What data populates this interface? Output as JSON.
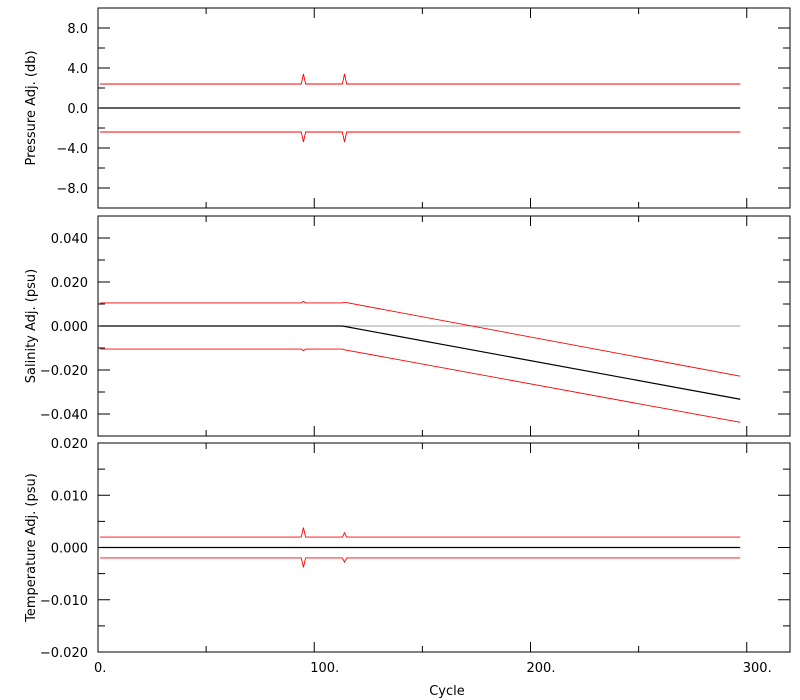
{
  "chart_data": [
    {
      "type": "line",
      "ylabel": "Pressure Adj. (db)",
      "xlim": [
        0,
        320
      ],
      "ylim": [
        -10,
        10
      ],
      "ytick_values": [
        -8,
        -4,
        0,
        4,
        8
      ],
      "ytick_labels": [
        "−8.0",
        "−4.0",
        "0.0",
        "4.0",
        "8.0"
      ],
      "grid": false,
      "colors": {
        "adjustment": "#000000",
        "error": "#ff0000"
      },
      "series": [
        {
          "points": [
            [
              1,
              0
            ],
            [
              297,
              0
            ]
          ]
        },
        {
          "points": [
            [
              1,
              2.4
            ],
            [
              94,
              2.4
            ],
            [
              95,
              3.4
            ],
            [
              96,
              2.4
            ],
            [
              113,
              2.4
            ],
            [
              114,
              3.4
            ],
            [
              115,
              2.4
            ],
            [
              297,
              2.4
            ]
          ]
        },
        {
          "points": [
            [
              1,
              -2.4
            ],
            [
              94,
              -2.4
            ],
            [
              95,
              -3.4
            ],
            [
              96,
              -2.4
            ],
            [
              113,
              -2.4
            ],
            [
              114,
              -3.4
            ],
            [
              115,
              -2.4
            ],
            [
              297,
              -2.4
            ]
          ]
        }
      ]
    },
    {
      "type": "line",
      "ylabel": "Salinity Adj. (psu)",
      "xlim": [
        0,
        320
      ],
      "ylim": [
        -0.05,
        0.05
      ],
      "ytick_values": [
        -0.04,
        -0.02,
        0,
        0.02,
        0.04
      ],
      "ytick_labels": [
        "−0.040",
        "−0.020",
        "0.000",
        "0.020",
        "0.040"
      ],
      "grid": false,
      "colors": {
        "adjustment": "#000000",
        "error": "#ff0000",
        "zero_line": "#a0a0a0"
      },
      "series": [
        {
          "points": [
            [
              1,
              0
            ],
            [
              297,
              0
            ]
          ]
        },
        {
          "points": [
            [
              1,
              0
            ],
            [
              113,
              0
            ],
            [
              297,
              -0.0333
            ]
          ]
        },
        {
          "points": [
            [
              1,
              0.0105
            ],
            [
              94,
              0.0105
            ],
            [
              95,
              0.0112
            ],
            [
              96,
              0.0105
            ],
            [
              113,
              0.0105
            ],
            [
              114,
              0.0108
            ],
            [
              297,
              -0.0228
            ]
          ]
        },
        {
          "points": [
            [
              1,
              -0.0105
            ],
            [
              94,
              -0.0105
            ],
            [
              95,
              -0.0112
            ],
            [
              96,
              -0.0105
            ],
            [
              113,
              -0.0105
            ],
            [
              114,
              -0.0108
            ],
            [
              297,
              -0.0438
            ]
          ]
        }
      ]
    },
    {
      "type": "line",
      "ylabel": "Temperature Adj. (psu)",
      "xlabel": "Cycle",
      "xlim": [
        0,
        320
      ],
      "ylim": [
        -0.02,
        0.02
      ],
      "ytick_values": [
        -0.02,
        -0.01,
        0,
        0.01,
        0.02
      ],
      "ytick_labels": [
        "−0.020",
        "−0.010",
        "0.000",
        "0.010",
        "0.020"
      ],
      "xtick_values": [
        0,
        100,
        200,
        300
      ],
      "xtick_labels": [
        "0.",
        "100.",
        "200.",
        "300."
      ],
      "grid": false,
      "colors": {
        "adjustment": "#000000",
        "error": "#ff0000"
      },
      "series": [
        {
          "points": [
            [
              1,
              0
            ],
            [
              297,
              0
            ]
          ]
        },
        {
          "points": [
            [
              1,
              0.002
            ],
            [
              94,
              0.002
            ],
            [
              95,
              0.0038
            ],
            [
              96,
              0.002
            ],
            [
              113,
              0.002
            ],
            [
              114,
              0.0028
            ],
            [
              115,
              0.002
            ],
            [
              297,
              0.002
            ]
          ]
        },
        {
          "points": [
            [
              1,
              -0.002
            ],
            [
              94,
              -0.002
            ],
            [
              95,
              -0.0038
            ],
            [
              96,
              -0.002
            ],
            [
              113,
              -0.002
            ],
            [
              114,
              -0.0028
            ],
            [
              115,
              -0.002
            ],
            [
              297,
              -0.002
            ]
          ]
        }
      ]
    }
  ]
}
